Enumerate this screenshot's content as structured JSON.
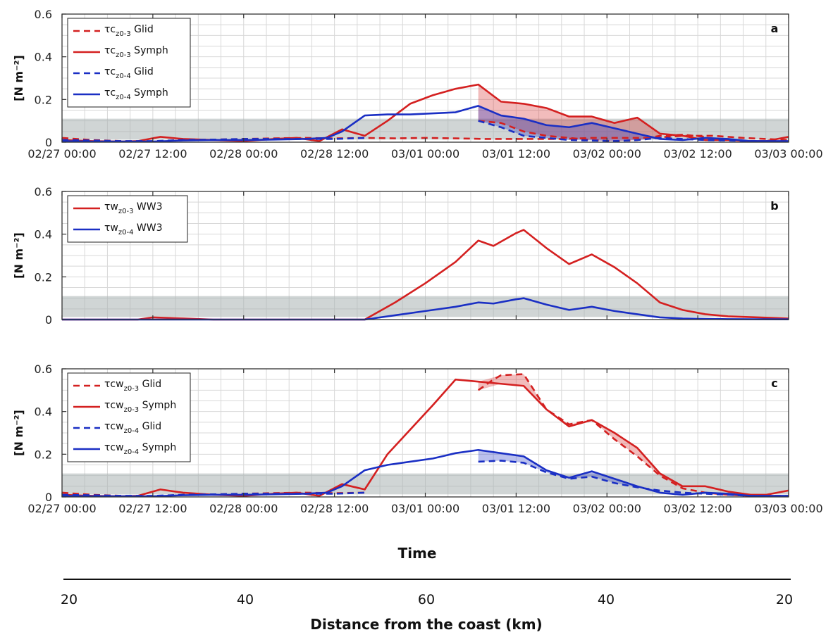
{
  "figure": {
    "xlabel": "Time",
    "distance_axis": {
      "title": "Distance from the coast (km)",
      "ticks": [
        "20",
        "40",
        "60",
        "40",
        "20"
      ]
    }
  },
  "colors": {
    "red": "#d42020",
    "blue": "#1a2fc4",
    "band": "#a9b3b3",
    "grid": "#d8d8d8"
  },
  "chart_data": [
    {
      "type": "line",
      "panel": "a",
      "ylabel": "[N m⁻²]",
      "ylim": [
        0,
        0.6
      ],
      "yticks": [
        "0",
        "0.2",
        "0.4",
        "0.6"
      ],
      "xlim": [
        0,
        96
      ],
      "xticks": [
        0,
        12,
        24,
        36,
        48,
        60,
        72,
        84,
        96
      ],
      "xticklabels": [
        "02/27 00:00",
        "02/27 12:00",
        "02/28 00:00",
        "02/28 12:00",
        "03/01 00:00",
        "03/01 12:00",
        "03/02 00:00",
        "03/02 12:00",
        "03/03 00:00"
      ],
      "x_unit": "hours since 02/27 00:00",
      "band": [
        0.012,
        0.11
      ],
      "legend": "top-left",
      "series": [
        {
          "name": "τc",
          "sub": "z0-3",
          "suffix": " Glid",
          "color": "red",
          "dash": true,
          "x": [
            0,
            4,
            8,
            12,
            16,
            20,
            24,
            28,
            32,
            36,
            40,
            44,
            48,
            52,
            56,
            60,
            66,
            70,
            74,
            78,
            82,
            86,
            90,
            96
          ],
          "y": [
            0.02,
            0.01,
            0.005,
            0.003,
            0.01,
            0.012,
            0.015,
            0.018,
            0.02,
            0.018,
            0.02,
            0.018,
            0.02,
            0.018,
            0.015,
            0.015,
            0.015,
            0.02,
            0.02,
            0.02,
            0.03,
            0.03,
            0.02,
            0.01
          ]
        },
        {
          "name": "τc",
          "sub": "z0-3",
          "suffix": " Symph",
          "color": "red",
          "dash": false,
          "x": [
            0,
            4,
            8,
            10,
            13,
            16,
            20,
            24,
            28,
            31,
            34,
            37,
            40,
            43,
            46,
            49,
            52,
            55,
            58,
            61,
            64,
            67,
            70,
            73,
            76,
            79,
            82,
            85,
            88,
            91,
            93,
            96
          ],
          "y": [
            0.01,
            0.005,
            0.003,
            0.005,
            0.025,
            0.015,
            0.01,
            0.005,
            0.015,
            0.02,
            0.005,
            0.06,
            0.03,
            0.1,
            0.18,
            0.22,
            0.25,
            0.27,
            0.19,
            0.18,
            0.16,
            0.12,
            0.12,
            0.09,
            0.115,
            0.04,
            0.03,
            0.01,
            0.01,
            0.005,
            0.005,
            0.025
          ]
        },
        {
          "name": "τc",
          "sub": "z0-3",
          "suffix": " Glid",
          "color": "red",
          "dash": true,
          "glid_segment": true,
          "x": [
            55,
            58,
            61,
            64,
            67,
            70,
            73,
            76,
            79,
            82,
            85
          ],
          "y": [
            0.1,
            0.09,
            0.05,
            0.03,
            0.02,
            0.01,
            0.005,
            0.01,
            0.03,
            0.035,
            0.025
          ]
        },
        {
          "name": "τc",
          "sub": "z0-4",
          "suffix": " Glid",
          "color": "blue",
          "dash": true,
          "x": [
            0,
            4,
            8,
            12,
            16,
            20,
            24,
            28,
            32,
            36,
            40
          ],
          "y": [
            0.01,
            0.008,
            0.005,
            0.005,
            0.01,
            0.012,
            0.015,
            0.015,
            0.015,
            0.015,
            0.02
          ]
        },
        {
          "name": "τc",
          "sub": "z0-4",
          "suffix": " Symph",
          "color": "blue",
          "dash": false,
          "x": [
            0,
            4,
            8,
            12,
            16,
            20,
            24,
            28,
            32,
            35,
            37,
            40,
            43,
            46,
            49,
            52,
            55,
            58,
            61,
            64,
            67,
            70,
            73,
            76,
            79,
            82,
            85,
            88,
            91,
            93,
            96
          ],
          "y": [
            0.005,
            0.003,
            0.003,
            0.003,
            0.008,
            0.01,
            0.01,
            0.012,
            0.015,
            0.02,
            0.05,
            0.125,
            0.13,
            0.13,
            0.135,
            0.14,
            0.17,
            0.125,
            0.11,
            0.08,
            0.07,
            0.09,
            0.065,
            0.04,
            0.015,
            0.01,
            0.02,
            0.015,
            0.005,
            0.005,
            0.005
          ]
        },
        {
          "name": "τc",
          "sub": "z0-4",
          "suffix": " Glid",
          "color": "blue",
          "dash": true,
          "glid_segment": true,
          "x": [
            55,
            58,
            61,
            64,
            67,
            70,
            73,
            76,
            79,
            82,
            85,
            88,
            91,
            96
          ],
          "y": [
            0.1,
            0.07,
            0.03,
            0.02,
            0.01,
            0.008,
            0.005,
            0.01,
            0.02,
            0.015,
            0.01,
            0.008,
            0.005,
            0.003
          ]
        }
      ],
      "fills": [
        {
          "color": "red",
          "x": [
            55,
            58,
            61,
            64,
            67,
            70,
            73,
            76,
            79
          ],
          "upper": [
            0.27,
            0.19,
            0.18,
            0.16,
            0.12,
            0.12,
            0.09,
            0.115,
            0.04
          ],
          "lower": [
            0.1,
            0.09,
            0.05,
            0.03,
            0.02,
            0.01,
            0.005,
            0.01,
            0.03
          ]
        },
        {
          "color": "blue",
          "x": [
            55,
            58,
            61,
            64,
            67,
            70,
            73,
            76,
            79
          ],
          "upper": [
            0.17,
            0.125,
            0.11,
            0.08,
            0.07,
            0.09,
            0.065,
            0.04,
            0.015
          ],
          "lower": [
            0.1,
            0.07,
            0.03,
            0.02,
            0.01,
            0.008,
            0.005,
            0.01,
            0.015
          ]
        }
      ]
    },
    {
      "type": "line",
      "panel": "b",
      "ylabel": "[N m⁻²]",
      "ylim": [
        0,
        0.6
      ],
      "yticks": [
        "0",
        "0.2",
        "0.4",
        "0.6"
      ],
      "xlim": [
        0,
        96
      ],
      "xticks": [
        0,
        12,
        24,
        36,
        48,
        60,
        72,
        84,
        96
      ],
      "xticklabels": [
        "",
        "",
        "",
        "",
        "",
        "",
        "",
        "",
        ""
      ],
      "band": [
        0.012,
        0.11
      ],
      "legend": "top-left",
      "series": [
        {
          "name": "τw",
          "sub": "z0-3",
          "suffix": " WW3",
          "color": "red",
          "dash": false,
          "x": [
            0,
            10,
            12,
            16,
            20,
            24,
            30,
            36,
            40,
            44,
            48,
            52,
            55,
            57,
            60,
            61,
            64,
            67,
            70,
            73,
            76,
            79,
            82,
            85,
            88,
            96
          ],
          "y": [
            0,
            0,
            0.01,
            0.005,
            0,
            0,
            0,
            0,
            0,
            0.08,
            0.17,
            0.27,
            0.37,
            0.345,
            0.405,
            0.42,
            0.335,
            0.26,
            0.305,
            0.245,
            0.17,
            0.08,
            0.045,
            0.025,
            0.015,
            0.005
          ]
        },
        {
          "name": "τw",
          "sub": "z0-4",
          "suffix": " WW3",
          "color": "blue",
          "dash": false,
          "x": [
            0,
            12,
            24,
            36,
            40,
            44,
            48,
            52,
            55,
            57,
            60,
            61,
            64,
            67,
            70,
            73,
            76,
            79,
            82,
            85,
            88,
            96
          ],
          "y": [
            0,
            0,
            0,
            0,
            0,
            0.02,
            0.04,
            0.06,
            0.08,
            0.075,
            0.095,
            0.1,
            0.07,
            0.045,
            0.06,
            0.04,
            0.025,
            0.01,
            0.005,
            0.003,
            0.002,
            0.001
          ]
        }
      ]
    },
    {
      "type": "line",
      "panel": "c",
      "ylabel": "[N m⁻²]",
      "ylim": [
        0,
        0.6
      ],
      "yticks": [
        "0",
        "0.2",
        "0.4",
        "0.6"
      ],
      "xlim": [
        0,
        96
      ],
      "xticks": [
        0,
        12,
        24,
        36,
        48,
        60,
        72,
        84,
        96
      ],
      "xticklabels": [
        "02/27 00:00",
        "02/27 12:00",
        "02/28 00:00",
        "02/28 12:00",
        "03/01 00:00",
        "03/01 12:00",
        "03/02 00:00",
        "03/02 12:00",
        "03/03 00:00"
      ],
      "band": [
        0.012,
        0.11
      ],
      "legend": "top-left",
      "series": [
        {
          "name": "τcw",
          "sub": "z0-3",
          "suffix": " Glid",
          "color": "red",
          "dash": true,
          "x": [
            0,
            4,
            8,
            12,
            16,
            20,
            24,
            28,
            32,
            36,
            40
          ],
          "y": [
            0.02,
            0.01,
            0.005,
            0.003,
            0.01,
            0.012,
            0.015,
            0.018,
            0.02,
            0.018,
            0.02
          ]
        },
        {
          "name": "τcw",
          "sub": "z0-3",
          "suffix": " Symph",
          "color": "red",
          "dash": false,
          "x": [
            0,
            4,
            8,
            10,
            13,
            16,
            20,
            24,
            28,
            31,
            34,
            37,
            40,
            43,
            49,
            52,
            55,
            58,
            61,
            64,
            67,
            70,
            73,
            76,
            79,
            82,
            85,
            88,
            91,
            93,
            96
          ],
          "y": [
            0.01,
            0.005,
            0.003,
            0.005,
            0.035,
            0.02,
            0.01,
            0.005,
            0.015,
            0.02,
            0.005,
            0.06,
            0.035,
            0.2,
            0.43,
            0.55,
            0.54,
            0.53,
            0.52,
            0.41,
            0.33,
            0.36,
            0.3,
            0.23,
            0.11,
            0.05,
            0.05,
            0.025,
            0.01,
            0.01,
            0.03
          ]
        },
        {
          "name": "τcw",
          "sub": "z0-3",
          "suffix": " Glid",
          "color": "red",
          "dash": true,
          "glid_segment": true,
          "x": [
            55,
            57,
            58,
            61,
            64,
            67,
            70,
            73,
            76,
            79,
            82,
            85,
            88,
            91,
            96
          ],
          "y": [
            0.5,
            0.55,
            0.57,
            0.575,
            0.41,
            0.34,
            0.36,
            0.27,
            0.19,
            0.1,
            0.04,
            0.02,
            0.01,
            0.005,
            0.005
          ]
        },
        {
          "name": "τcw",
          "sub": "z0-4",
          "suffix": " Glid",
          "color": "blue",
          "dash": true,
          "x": [
            0,
            4,
            8,
            12,
            16,
            20,
            24,
            28,
            32,
            36,
            40
          ],
          "y": [
            0.01,
            0.008,
            0.005,
            0.005,
            0.01,
            0.012,
            0.015,
            0.015,
            0.015,
            0.015,
            0.02
          ]
        },
        {
          "name": "τcw",
          "sub": "z0-4",
          "suffix": " Symph",
          "color": "blue",
          "dash": false,
          "x": [
            0,
            4,
            8,
            12,
            16,
            20,
            24,
            28,
            32,
            35,
            37,
            40,
            43,
            46,
            49,
            52,
            55,
            58,
            61,
            64,
            67,
            70,
            73,
            76,
            79,
            82,
            85,
            88,
            91,
            93,
            96
          ],
          "y": [
            0.005,
            0.003,
            0.003,
            0.003,
            0.008,
            0.01,
            0.01,
            0.012,
            0.015,
            0.02,
            0.05,
            0.125,
            0.15,
            0.165,
            0.18,
            0.205,
            0.22,
            0.205,
            0.19,
            0.125,
            0.09,
            0.12,
            0.085,
            0.05,
            0.02,
            0.01,
            0.02,
            0.015,
            0.005,
            0.005,
            0.005
          ]
        },
        {
          "name": "τcw",
          "sub": "z0-4",
          "suffix": " Glid",
          "color": "blue",
          "dash": true,
          "glid_segment": true,
          "x": [
            55,
            58,
            61,
            64,
            67,
            70,
            73,
            76,
            79,
            82,
            85,
            88,
            91,
            96
          ],
          "y": [
            0.165,
            0.17,
            0.16,
            0.115,
            0.085,
            0.095,
            0.065,
            0.045,
            0.03,
            0.02,
            0.015,
            0.01,
            0.005,
            0.003
          ]
        }
      ],
      "fills": [
        {
          "color": "red",
          "x": [
            55,
            58,
            61,
            64,
            67,
            70,
            73,
            76,
            79,
            82
          ],
          "upper": [
            0.54,
            0.57,
            0.575,
            0.41,
            0.34,
            0.36,
            0.3,
            0.23,
            0.11,
            0.05
          ],
          "lower": [
            0.5,
            0.53,
            0.52,
            0.41,
            0.33,
            0.36,
            0.27,
            0.19,
            0.1,
            0.04
          ]
        },
        {
          "color": "blue",
          "x": [
            55,
            58,
            61,
            64,
            67,
            70,
            73,
            76,
            79
          ],
          "upper": [
            0.22,
            0.205,
            0.19,
            0.125,
            0.09,
            0.12,
            0.085,
            0.05,
            0.03
          ],
          "lower": [
            0.165,
            0.17,
            0.16,
            0.115,
            0.085,
            0.095,
            0.065,
            0.045,
            0.02
          ]
        }
      ]
    }
  ]
}
